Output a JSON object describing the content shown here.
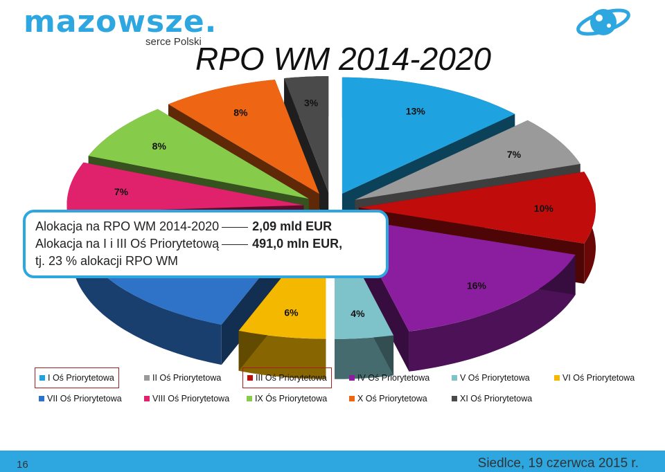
{
  "logo": {
    "name": "mazowsze.",
    "tagline": "serce Polski"
  },
  "title": "RPO WM 2014-2020",
  "info_box": {
    "line1_text": "Alokacja na RPO WM 2014-2020",
    "line1_value": "2,09 mld EUR",
    "line2_text": "Alokacja na I i III Oś Priorytetową",
    "line2_value": "491,0 mln EUR,",
    "line3_text": "tj. 23 % alokacji RPO WM"
  },
  "chart_data": {
    "type": "pie",
    "style": "3d exploded",
    "legend_position": "bottom",
    "categories": [
      "I Oś Priorytetowa",
      "II Oś Priorytetowa",
      "III Oś Priorytetowa",
      "IV Oś Priorytetowa",
      "V Oś Priorytetowa",
      "VI Oś Priorytetowa",
      "VII Oś Priorytetowa",
      "VIII Oś Priorytetowa",
      "IX Ós Priorytetowa",
      "X Oś Priorytetowa",
      "XI Oś Priorytetowa"
    ],
    "values": [
      13,
      7,
      10,
      16,
      4,
      6,
      null,
      7,
      8,
      8,
      3
    ],
    "labels": [
      "13%",
      "7%",
      "10%",
      "16%",
      "4%",
      "6%",
      "",
      "7%",
      "8%",
      "8%",
      "3%"
    ],
    "colors": [
      "#1fa2e0",
      "#9a9a9a",
      "#c10c0c",
      "#8a1e9e",
      "#7ec3ca",
      "#f5b800",
      "#2e73c8",
      "#e0216b",
      "#86cc4a",
      "#ee6613",
      "#4a4a4a"
    ],
    "highlighted": [
      "I Oś Priorytetowa",
      "III Oś Priorytetowa"
    ]
  },
  "footer": {
    "page": "16",
    "date": "Siedlce, 19 czerwca 2015 r."
  }
}
